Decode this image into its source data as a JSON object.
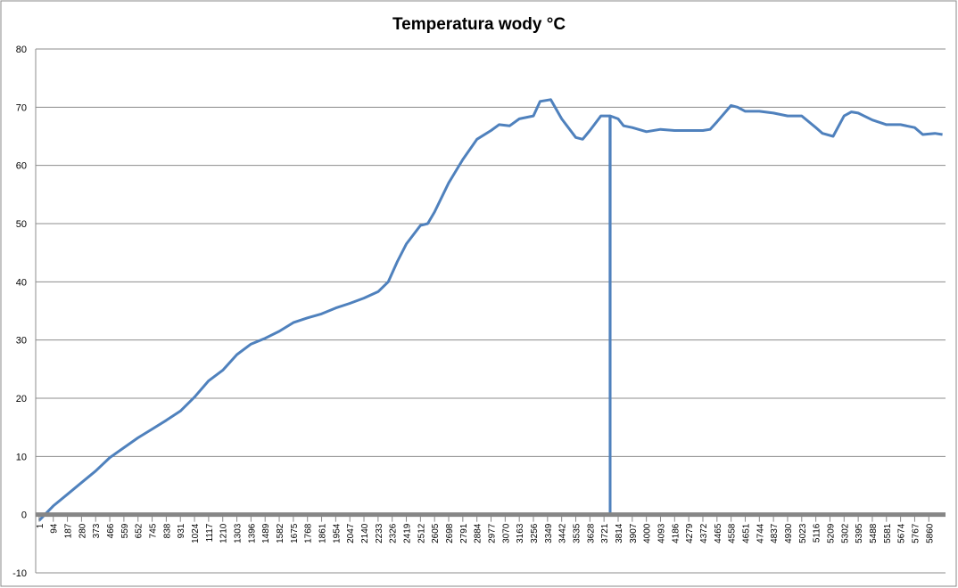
{
  "chart_data": {
    "type": "line",
    "title": "Temperatura wody °C",
    "series": [
      {
        "name": "Temperatura wody °C",
        "color": "#4f81bd",
        "x": [
          1,
          94,
          187,
          280,
          373,
          466,
          559,
          652,
          745,
          838,
          931,
          1024,
          1117,
          1210,
          1303,
          1396,
          1489,
          1582,
          1675,
          1768,
          1861,
          1954,
          2047,
          2140,
          2233,
          2300,
          2360,
          2419,
          2512,
          2560,
          2605,
          2698,
          2791,
          2884,
          2977,
          3030,
          3100,
          3163,
          3256,
          3300,
          3370,
          3442,
          3535,
          3580,
          3628,
          3700,
          3760,
          3761,
          3762,
          3814,
          3850,
          3907,
          4000,
          4093,
          4186,
          4279,
          4372,
          4420,
          4465,
          4558,
          4600,
          4651,
          4744,
          4837,
          4930,
          5023,
          5116,
          5160,
          5230,
          5302,
          5350,
          5395,
          5488,
          5581,
          5674,
          5767,
          5820,
          5900,
          5950
        ],
        "values": [
          -1,
          1.5,
          3.5,
          5.5,
          7.5,
          9.8,
          11.5,
          13.2,
          14.7,
          16.2,
          17.8,
          20.2,
          23,
          24.8,
          27.5,
          29.3,
          30.3,
          31.5,
          33,
          33.8,
          34.5,
          35.5,
          36.3,
          37.2,
          38.3,
          40,
          43.5,
          46.5,
          49.7,
          50,
          52,
          57,
          61,
          64.5,
          66,
          67,
          66.8,
          68,
          68.5,
          71,
          71.3,
          68,
          64.8,
          64.5,
          66,
          68.5,
          68.5,
          0,
          68.5,
          68,
          66.8,
          66.5,
          65.8,
          66.2,
          66,
          66,
          66,
          66.2,
          67.5,
          70.3,
          70,
          69.3,
          69.3,
          69,
          68.5,
          68.5,
          66.5,
          65.5,
          65,
          68.5,
          69.2,
          69,
          67.8,
          67,
          67,
          66.5,
          65.3,
          65.5,
          65.3
        ]
      }
    ],
    "xlim": [
      -22,
      5970
    ],
    "xticks": [
      1,
      94,
      187,
      280,
      373,
      466,
      559,
      652,
      745,
      838,
      931,
      1024,
      1117,
      1210,
      1303,
      1396,
      1489,
      1582,
      1675,
      1768,
      1861,
      1954,
      2047,
      2140,
      2233,
      2326,
      2419,
      2512,
      2605,
      2698,
      2791,
      2884,
      2977,
      3070,
      3163,
      3256,
      3349,
      3442,
      3535,
      3628,
      3721,
      3814,
      3907,
      4000,
      4093,
      4186,
      4279,
      4372,
      4465,
      4558,
      4651,
      4744,
      4837,
      4930,
      5023,
      5116,
      5209,
      5302,
      5395,
      5488,
      5581,
      5674,
      5767,
      5860
    ],
    "ylim": [
      -10,
      80
    ],
    "yticks": [
      -10,
      0,
      10,
      20,
      30,
      40,
      50,
      60,
      70,
      80
    ],
    "grid": true
  }
}
